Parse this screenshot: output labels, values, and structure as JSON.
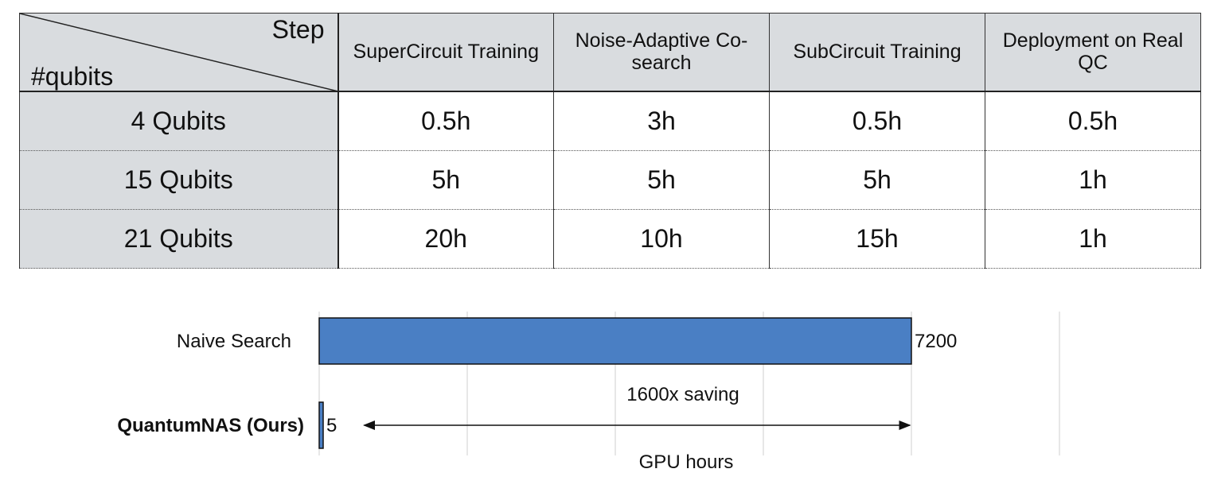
{
  "table": {
    "corner_top": "Step",
    "corner_bottom": "#qubits",
    "columns": [
      "SuperCircuit Training",
      "Noise-Adaptive Co-search",
      "SubCircuit Training",
      "Deployment on Real QC"
    ],
    "rows": [
      {
        "label": "4 Qubits",
        "values": [
          "0.5h",
          "3h",
          "0.5h",
          "0.5h"
        ]
      },
      {
        "label": "15 Qubits",
        "values": [
          "5h",
          "5h",
          "5h",
          "1h"
        ]
      },
      {
        "label": "21 Qubits",
        "values": [
          "20h",
          "10h",
          "15h",
          "1h"
        ]
      }
    ]
  },
  "chart_data": {
    "type": "bar",
    "orientation": "horizontal",
    "categories": [
      "Naive Search",
      "QuantumNAS (Ours)"
    ],
    "values": [
      7200,
      5
    ],
    "value_labels": [
      "7200",
      "5"
    ],
    "xlabel": "GPU hours",
    "xlim": [
      0,
      9000
    ],
    "grid": true,
    "annotation": "1600x saving",
    "bar_color": "#4a7fc4",
    "bold_category": "QuantumNAS (Ours)"
  }
}
